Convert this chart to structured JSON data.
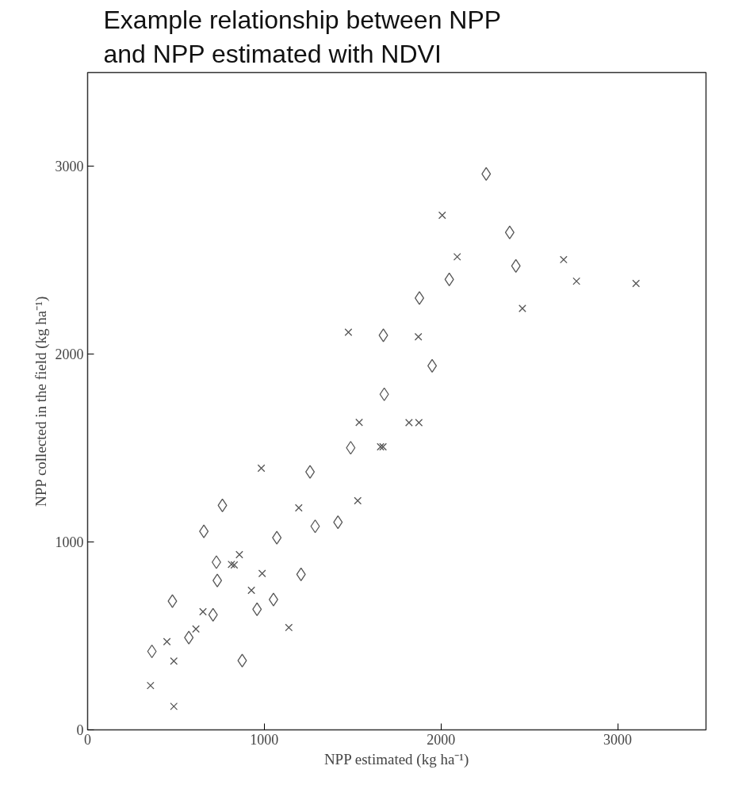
{
  "chart_data": {
    "type": "scatter",
    "title": "Example relationship between NPP and NPP estimated with NDVI",
    "xlabel": "NPP estimated (kg ha⁻¹)",
    "ylabel": "NPP collected in the field (kg ha⁻¹)",
    "xlim": [
      0,
      3500
    ],
    "ylim": [
      0,
      3500
    ],
    "xticks": [
      0,
      1000,
      2000,
      3000
    ],
    "yticks": [
      0,
      1000,
      2000,
      3000
    ],
    "grid": false,
    "series": [
      {
        "color": "#555555",
        "marker": "diamond",
        "x": [
          364,
          480,
          573,
          658,
          710,
          729,
          734,
          763,
          875,
          959,
          1052,
          1071,
          1208,
          1259,
          1288,
          1417,
          1489,
          1674,
          1679,
          1878,
          1950,
          2047,
          2256,
          2389,
          2424
        ],
        "values": [
          418,
          686,
          491,
          1057,
          613,
          893,
          795,
          1195,
          369,
          642,
          694,
          1023,
          828,
          1374,
          1084,
          1106,
          1502,
          2101,
          1787,
          2299,
          1938,
          2399,
          2960,
          2649,
          2470
        ]
      },
      {
        "color": "#555555",
        "marker": "cross",
        "x": [
          356,
          488,
          488,
          449,
          613,
          653,
          814,
          830,
          859,
          983,
          988,
          927,
          1139,
          1195,
          1529,
          1658,
          1672,
          1476,
          1537,
          1819,
          1875,
          2007,
          2092,
          2694,
          2767,
          3104,
          2461,
          1872
        ],
        "values": [
          236,
          125,
          366,
          470,
          537,
          629,
          881,
          878,
          933,
          1393,
          833,
          743,
          545,
          1182,
          1220,
          1507,
          1507,
          2117,
          1637,
          1636,
          1636,
          2740,
          2519,
          2504,
          2389,
          2377,
          2244,
          2093
        ]
      }
    ]
  }
}
